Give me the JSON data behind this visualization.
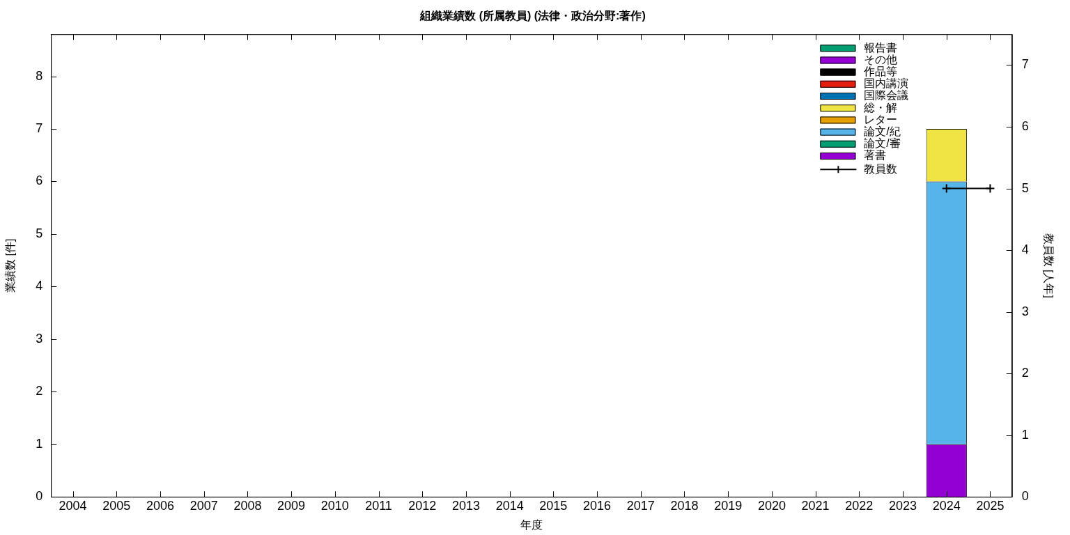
{
  "chart_data": {
    "type": "bar",
    "title": "組織業績数 (所属教員) (法律・政治分野:著作)",
    "xlabel": "年度",
    "ylabel": "業績数 [件]",
    "y2label": "教員数 [人年]",
    "categories": [
      "2004",
      "2005",
      "2006",
      "2007",
      "2008",
      "2009",
      "2010",
      "2011",
      "2012",
      "2013",
      "2014",
      "2015",
      "2016",
      "2017",
      "2018",
      "2019",
      "2020",
      "2021",
      "2022",
      "2023",
      "2024",
      "2025"
    ],
    "stacked": true,
    "legend": "top right",
    "grid": false,
    "marker": "cross",
    "ylim": [
      0,
      8.8
    ],
    "yticks": [
      0,
      1,
      2,
      3,
      4,
      5,
      6,
      7,
      8
    ],
    "y2lim": [
      0,
      7.5
    ],
    "y2ticks": [
      0,
      1,
      2,
      3,
      4,
      5,
      6,
      7
    ],
    "series": [
      {
        "name": "著書",
        "color": "#9400d3",
        "values": [
          0,
          0,
          0,
          0,
          0,
          0,
          0,
          0,
          0,
          0,
          0,
          0,
          0,
          0,
          0,
          0,
          0,
          0,
          0,
          0,
          1,
          0
        ]
      },
      {
        "name": "論文/審",
        "color": "#009e73",
        "values": [
          0,
          0,
          0,
          0,
          0,
          0,
          0,
          0,
          0,
          0,
          0,
          0,
          0,
          0,
          0,
          0,
          0,
          0,
          0,
          0,
          0,
          0
        ]
      },
      {
        "name": "論文/紀",
        "color": "#56b4e9",
        "values": [
          0,
          0,
          0,
          0,
          0,
          0,
          0,
          0,
          0,
          0,
          0,
          0,
          0,
          0,
          0,
          0,
          0,
          0,
          0,
          0,
          5,
          0
        ]
      },
      {
        "name": "レター",
        "color": "#e69f00",
        "values": [
          0,
          0,
          0,
          0,
          0,
          0,
          0,
          0,
          0,
          0,
          0,
          0,
          0,
          0,
          0,
          0,
          0,
          0,
          0,
          0,
          0,
          0
        ]
      },
      {
        "name": "総・解",
        "color": "#f0e442",
        "values": [
          0,
          0,
          0,
          0,
          0,
          0,
          0,
          0,
          0,
          0,
          0,
          0,
          0,
          0,
          0,
          0,
          0,
          0,
          0,
          0,
          1,
          0
        ]
      },
      {
        "name": "国際会議",
        "color": "#0072b2",
        "values": [
          0,
          0,
          0,
          0,
          0,
          0,
          0,
          0,
          0,
          0,
          0,
          0,
          0,
          0,
          0,
          0,
          0,
          0,
          0,
          0,
          0,
          0
        ]
      },
      {
        "name": "国内講演",
        "color": "#e51e10",
        "values": [
          0,
          0,
          0,
          0,
          0,
          0,
          0,
          0,
          0,
          0,
          0,
          0,
          0,
          0,
          0,
          0,
          0,
          0,
          0,
          0,
          0,
          0
        ]
      },
      {
        "name": "作品等",
        "color": "#000000",
        "values": [
          0,
          0,
          0,
          0,
          0,
          0,
          0,
          0,
          0,
          0,
          0,
          0,
          0,
          0,
          0,
          0,
          0,
          0,
          0,
          0,
          0,
          0
        ]
      },
      {
        "name": "その他",
        "color": "#9400d3",
        "values": [
          0,
          0,
          0,
          0,
          0,
          0,
          0,
          0,
          0,
          0,
          0,
          0,
          0,
          0,
          0,
          0,
          0,
          0,
          0,
          0,
          0,
          0
        ]
      },
      {
        "name": "報告書",
        "color": "#009e73",
        "values": [
          0,
          0,
          0,
          0,
          0,
          0,
          0,
          0,
          0,
          0,
          0,
          0,
          0,
          0,
          0,
          0,
          0,
          0,
          0,
          0,
          0,
          0
        ]
      },
      {
        "name": "教員数",
        "type": "line",
        "axis": "y2",
        "color": "#000000",
        "values": [
          null,
          null,
          null,
          null,
          null,
          null,
          null,
          null,
          null,
          null,
          null,
          null,
          null,
          null,
          null,
          null,
          null,
          null,
          null,
          null,
          5,
          5
        ]
      }
    ]
  }
}
